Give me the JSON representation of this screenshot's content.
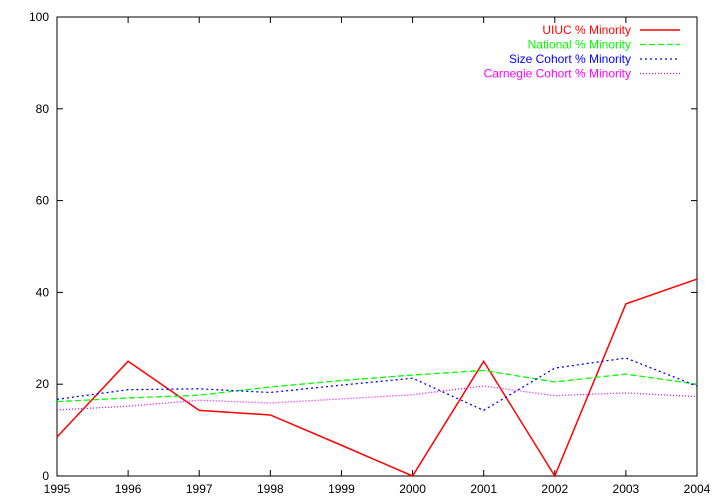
{
  "chart_data": {
    "type": "line",
    "title": "",
    "xlabel": "",
    "ylabel": "",
    "x": [
      1995,
      1996,
      1997,
      1998,
      1999,
      2000,
      2001,
      2002,
      2003,
      2004
    ],
    "xlim": [
      1995,
      2004
    ],
    "ylim": [
      0,
      100
    ],
    "xticks": [
      "1995",
      "1996",
      "1997",
      "1998",
      "1999",
      "2000",
      "2001",
      "2002",
      "2003",
      "2004"
    ],
    "yticks": [
      "0",
      "20",
      "40",
      "60",
      "80",
      "100"
    ],
    "grid": false,
    "legend_position": "top-right",
    "series": [
      {
        "name": "UIUC % Minority",
        "color": "#ff0000",
        "dash": "solid",
        "values": [
          8.5,
          25,
          14.3,
          13.3,
          6.7,
          0,
          25,
          0,
          37.5,
          42.9
        ]
      },
      {
        "name": "National % Minority",
        "color": "#00ff00",
        "dash": "dashed",
        "values": [
          16.2,
          17,
          17.6,
          19.4,
          20.8,
          22,
          23,
          20.5,
          22.2,
          20
        ]
      },
      {
        "name": "Size Cohort % Minority",
        "color": "#0000ff",
        "dash": "dotted",
        "values": [
          16.7,
          18.8,
          19,
          18.2,
          19.8,
          21.3,
          14.3,
          23.5,
          25.7,
          19.6
        ]
      },
      {
        "name": "Carnegie Cohort % Minority",
        "color": "#ff00ff",
        "dash": "fine-dotted",
        "values": [
          14.4,
          15.2,
          16.5,
          15.9,
          16.8,
          17.7,
          19.6,
          17.5,
          18.1,
          17.3
        ]
      }
    ]
  }
}
